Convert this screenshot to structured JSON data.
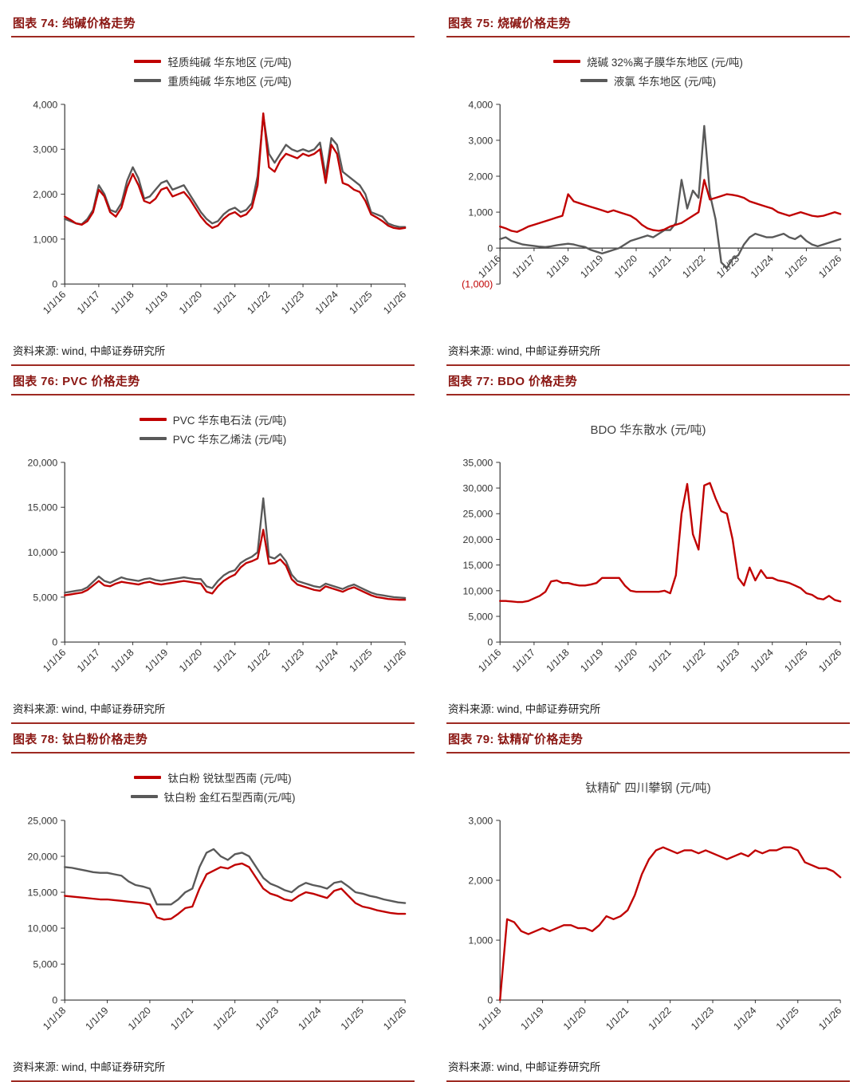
{
  "theme": {
    "accent_rule": "#9e2a22",
    "header_text": "#8b1713",
    "series_red": "#c00000",
    "series_gray": "#595959",
    "negative_tick": "#c00000"
  },
  "chart_data": [
    {
      "id": "fig74",
      "type": "line",
      "header": "图表 74: 纯碱价格走势",
      "source": "资料来源: wind, 中邮证券研究所",
      "legend": [
        {
          "label": "轻质纯碱 华东地区 (元/吨)",
          "color": "#c00000"
        },
        {
          "label": "重质纯碱 华东地区 (元/吨)",
          "color": "#595959"
        }
      ],
      "ylim": [
        0,
        4000
      ],
      "yticks": [
        0,
        1000,
        2000,
        3000,
        4000
      ],
      "x_labels": [
        "1/1/16",
        "1/1/17",
        "1/1/18",
        "1/1/19",
        "1/1/20",
        "1/1/21",
        "1/1/22",
        "1/1/23",
        "1/1/24",
        "1/1/25",
        "1/1/26"
      ],
      "series": [
        {
          "name": "light-soda-ash",
          "color": "#c00000",
          "values": [
            1500,
            1430,
            1350,
            1320,
            1400,
            1600,
            2100,
            1950,
            1600,
            1500,
            1700,
            2150,
            2450,
            2200,
            1850,
            1800,
            1900,
            2100,
            2150,
            1950,
            2000,
            2050,
            1900,
            1700,
            1500,
            1350,
            1250,
            1300,
            1450,
            1550,
            1600,
            1500,
            1550,
            1700,
            2200,
            3800,
            2600,
            2500,
            2750,
            2900,
            2850,
            2800,
            2900,
            2850,
            2900,
            3000,
            2250,
            3100,
            2900,
            2250,
            2200,
            2100,
            2050,
            1850,
            1550,
            1480,
            1400,
            1300,
            1250,
            1230,
            1250
          ]
        },
        {
          "name": "heavy-soda-ash",
          "color": "#595959",
          "values": [
            1450,
            1400,
            1350,
            1330,
            1450,
            1650,
            2200,
            2000,
            1650,
            1600,
            1800,
            2300,
            2600,
            2350,
            1900,
            1950,
            2100,
            2250,
            2300,
            2100,
            2150,
            2200,
            2000,
            1800,
            1600,
            1450,
            1350,
            1400,
            1550,
            1650,
            1700,
            1600,
            1650,
            1800,
            2400,
            3750,
            2900,
            2700,
            2900,
            3100,
            3000,
            2950,
            3000,
            2950,
            3000,
            3150,
            2400,
            3250,
            3100,
            2500,
            2400,
            2300,
            2200,
            2000,
            1600,
            1550,
            1500,
            1350,
            1300,
            1270,
            1270
          ]
        }
      ]
    },
    {
      "id": "fig75",
      "type": "line",
      "header": "图表 75: 烧碱价格走势",
      "source": "资料来源: wind, 中邮证券研究所",
      "legend": [
        {
          "label": "烧碱 32%离子膜华东地区 (元/吨)",
          "color": "#c00000"
        },
        {
          "label": "液氯 华东地区 (元/吨)",
          "color": "#595959"
        }
      ],
      "ylim": [
        -1000,
        4000
      ],
      "yticks": [
        -1000,
        0,
        1000,
        2000,
        3000,
        4000
      ],
      "x_labels": [
        "1/1/16",
        "1/1/17",
        "1/1/18",
        "1/1/19",
        "1/1/20",
        "1/1/21",
        "1/1/22",
        "1/1/23",
        "1/1/24",
        "1/1/25",
        "1/1/26"
      ],
      "series": [
        {
          "name": "caustic-soda-32pct",
          "color": "#c00000",
          "values": [
            600,
            550,
            480,
            450,
            520,
            600,
            650,
            700,
            750,
            800,
            850,
            900,
            1500,
            1300,
            1250,
            1200,
            1150,
            1100,
            1050,
            1000,
            1050,
            1000,
            950,
            900,
            800,
            650,
            550,
            500,
            480,
            520,
            600,
            650,
            700,
            800,
            900,
            1000,
            1900,
            1350,
            1400,
            1450,
            1500,
            1480,
            1450,
            1400,
            1300,
            1250,
            1200,
            1150,
            1100,
            1000,
            950,
            900,
            950,
            1000,
            950,
            900,
            880,
            900,
            950,
            1000,
            950
          ]
        },
        {
          "name": "liquid-chlorine",
          "color": "#595959",
          "values": [
            250,
            300,
            200,
            150,
            100,
            80,
            60,
            40,
            30,
            50,
            80,
            100,
            120,
            100,
            60,
            30,
            -50,
            -100,
            -150,
            -100,
            -50,
            0,
            100,
            200,
            250,
            300,
            350,
            300,
            400,
            500,
            500,
            700,
            1900,
            1100,
            1600,
            1400,
            3400,
            1500,
            800,
            -400,
            -550,
            -300,
            -200,
            100,
            300,
            400,
            350,
            300,
            300,
            350,
            400,
            300,
            250,
            350,
            200,
            100,
            50,
            100,
            150,
            200,
            250
          ]
        }
      ]
    },
    {
      "id": "fig76",
      "type": "line",
      "header": "图表 76: PVC 价格走势",
      "source": "资料来源: wind, 中邮证券研究所",
      "legend": [
        {
          "label": "PVC 华东电石法 (元/吨)",
          "color": "#c00000"
        },
        {
          "label": "PVC 华东乙烯法 (元/吨)",
          "color": "#595959"
        }
      ],
      "ylim": [
        0,
        20000
      ],
      "yticks": [
        0,
        5000,
        10000,
        15000,
        20000
      ],
      "x_labels": [
        "1/1/16",
        "1/1/17",
        "1/1/18",
        "1/1/19",
        "1/1/20",
        "1/1/21",
        "1/1/22",
        "1/1/23",
        "1/1/24",
        "1/1/25",
        "1/1/26"
      ],
      "series": [
        {
          "name": "pvc-carbide",
          "color": "#c00000",
          "values": [
            5200,
            5300,
            5400,
            5500,
            5800,
            6300,
            6800,
            6300,
            6200,
            6500,
            6700,
            6600,
            6500,
            6400,
            6600,
            6700,
            6500,
            6400,
            6500,
            6600,
            6700,
            6800,
            6700,
            6600,
            6500,
            5600,
            5400,
            6200,
            6800,
            7200,
            7500,
            8300,
            8800,
            9000,
            9300,
            12500,
            8700,
            8800,
            9200,
            8500,
            7000,
            6400,
            6200,
            6000,
            5800,
            5700,
            6200,
            6000,
            5800,
            5600,
            5900,
            6100,
            5800,
            5500,
            5200,
            5000,
            4900,
            4800,
            4750,
            4700,
            4700
          ]
        },
        {
          "name": "pvc-ethylene",
          "color": "#595959",
          "values": [
            5500,
            5600,
            5700,
            5800,
            6100,
            6700,
            7300,
            6800,
            6600,
            6900,
            7200,
            7000,
            6900,
            6800,
            7000,
            7100,
            6900,
            6800,
            6900,
            7000,
            7100,
            7200,
            7100,
            7000,
            7000,
            6200,
            6000,
            6800,
            7400,
            7800,
            8000,
            8800,
            9200,
            9500,
            10000,
            16000,
            9500,
            9300,
            9800,
            9000,
            7500,
            6800,
            6600,
            6400,
            6200,
            6100,
            6500,
            6300,
            6100,
            5900,
            6200,
            6400,
            6100,
            5800,
            5500,
            5300,
            5200,
            5100,
            5000,
            4950,
            4900
          ]
        }
      ]
    },
    {
      "id": "fig77",
      "type": "line",
      "header": "图表 77: BDO 价格走势",
      "source": "资料来源: wind, 中邮证券研究所",
      "title": "BDO 华东散水 (元/吨)",
      "legend": null,
      "ylim": [
        0,
        35000
      ],
      "yticks": [
        0,
        5000,
        10000,
        15000,
        20000,
        25000,
        30000,
        35000
      ],
      "x_labels": [
        "1/1/16",
        "1/1/17",
        "1/1/18",
        "1/1/19",
        "1/1/20",
        "1/1/21",
        "1/1/22",
        "1/1/23",
        "1/1/24",
        "1/1/25",
        "1/1/26"
      ],
      "series": [
        {
          "name": "bdo-east-china",
          "color": "#c00000",
          "values": [
            8000,
            8000,
            7900,
            7800,
            7800,
            8000,
            8500,
            9000,
            9800,
            11800,
            12000,
            11500,
            11500,
            11200,
            11000,
            11000,
            11200,
            11500,
            12500,
            12500,
            12500,
            12500,
            11000,
            10000,
            9800,
            9800,
            9800,
            9800,
            9800,
            10000,
            9500,
            13000,
            25000,
            30800,
            21000,
            18000,
            30500,
            31000,
            28000,
            25500,
            25000,
            20000,
            12500,
            11000,
            14500,
            12000,
            14000,
            12500,
            12500,
            12000,
            11800,
            11500,
            11000,
            10500,
            9500,
            9200,
            8500,
            8300,
            9000,
            8200,
            7900
          ]
        }
      ]
    },
    {
      "id": "fig78",
      "type": "line",
      "header": "图表 78: 钛白粉价格走势",
      "source": "资料来源: wind, 中邮证券研究所",
      "legend": [
        {
          "label": "钛白粉 锐钛型西南 (元/吨)",
          "color": "#c00000"
        },
        {
          "label": "钛白粉 金红石型西南(元/吨)",
          "color": "#595959"
        }
      ],
      "ylim": [
        0,
        25000
      ],
      "yticks": [
        0,
        5000,
        10000,
        15000,
        20000,
        25000
      ],
      "x_labels": [
        "1/1/18",
        "1/1/19",
        "1/1/20",
        "1/1/21",
        "1/1/22",
        "1/1/23",
        "1/1/24",
        "1/1/25",
        "1/1/26"
      ],
      "series": [
        {
          "name": "tio2-anatase",
          "color": "#c00000",
          "values": [
            14500,
            14400,
            14300,
            14200,
            14100,
            14000,
            14000,
            13900,
            13800,
            13700,
            13600,
            13500,
            13300,
            11500,
            11200,
            11300,
            12000,
            12800,
            13000,
            15500,
            17500,
            18000,
            18500,
            18300,
            18800,
            19000,
            18500,
            17000,
            15500,
            14800,
            14500,
            14000,
            13800,
            14500,
            15000,
            14800,
            14500,
            14200,
            15200,
            15500,
            14500,
            13500,
            13000,
            12800,
            12500,
            12300,
            12100,
            12000,
            12000
          ]
        },
        {
          "name": "tio2-rutile",
          "color": "#595959",
          "values": [
            18500,
            18400,
            18200,
            18000,
            17800,
            17700,
            17700,
            17500,
            17300,
            16500,
            16000,
            15800,
            15500,
            13300,
            13300,
            13300,
            14000,
            15000,
            15500,
            18500,
            20500,
            21000,
            20000,
            19500,
            20300,
            20500,
            20000,
            18500,
            17000,
            16200,
            15800,
            15300,
            15000,
            15800,
            16300,
            16000,
            15800,
            15500,
            16300,
            16500,
            15800,
            15000,
            14800,
            14500,
            14300,
            14000,
            13800,
            13600,
            13500
          ]
        }
      ]
    },
    {
      "id": "fig79",
      "type": "line",
      "header": "图表 79: 钛精矿价格走势",
      "source": "资料来源: wind, 中邮证券研究所",
      "title": "钛精矿 四川攀钢 (元/吨)",
      "legend": null,
      "ylim": [
        0,
        3000
      ],
      "yticks": [
        0,
        1000,
        2000,
        3000
      ],
      "x_labels": [
        "1/1/18",
        "1/1/19",
        "1/1/20",
        "1/1/21",
        "1/1/22",
        "1/1/23",
        "1/1/24",
        "1/1/25",
        "1/1/26"
      ],
      "series": [
        {
          "name": "titanium-concentrate",
          "color": "#c00000",
          "values": [
            0,
            1350,
            1300,
            1150,
            1100,
            1150,
            1200,
            1150,
            1200,
            1250,
            1250,
            1200,
            1200,
            1150,
            1250,
            1400,
            1350,
            1400,
            1500,
            1750,
            2100,
            2350,
            2500,
            2550,
            2500,
            2450,
            2500,
            2500,
            2450,
            2500,
            2450,
            2400,
            2350,
            2400,
            2450,
            2400,
            2500,
            2450,
            2500,
            2500,
            2550,
            2550,
            2500,
            2300,
            2250,
            2200,
            2200,
            2150,
            2050
          ]
        }
      ]
    }
  ]
}
